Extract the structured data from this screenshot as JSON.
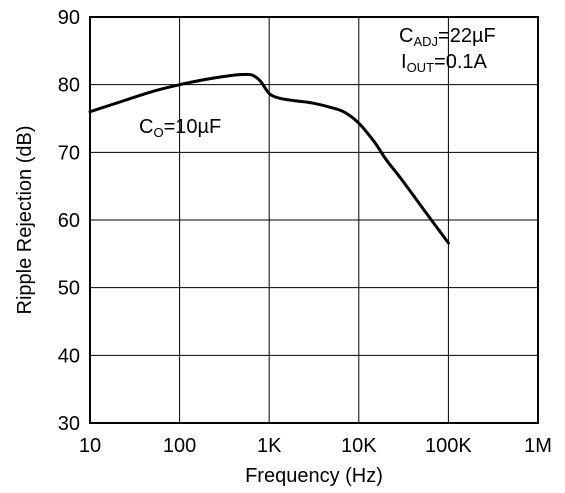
{
  "chart_data": {
    "type": "line",
    "xlabel": "Frequency (Hz)",
    "ylabel": "Ripple Rejection (dB)",
    "x_scale": "log",
    "xlim": [
      10,
      1000000
    ],
    "ylim": [
      30,
      90
    ],
    "grid": true,
    "x_ticks": [
      {
        "value": 10,
        "label": "10"
      },
      {
        "value": 100,
        "label": "100"
      },
      {
        "value": 1000,
        "label": "1K"
      },
      {
        "value": 10000,
        "label": "10K"
      },
      {
        "value": 100000,
        "label": "100K"
      },
      {
        "value": 1000000,
        "label": "1M"
      }
    ],
    "y_ticks": [
      {
        "value": 30,
        "label": "30"
      },
      {
        "value": 40,
        "label": "40"
      },
      {
        "value": 50,
        "label": "50"
      },
      {
        "value": 60,
        "label": "60"
      },
      {
        "value": 70,
        "label": "70"
      },
      {
        "value": 80,
        "label": "80"
      },
      {
        "value": 90,
        "label": "90"
      }
    ],
    "series": [
      {
        "x": [
          10,
          20,
          50,
          100,
          200,
          350,
          500,
          650,
          800,
          1000,
          1300,
          2000,
          3000,
          5000,
          7000,
          10000,
          15000,
          20000,
          30000,
          50000,
          100000
        ],
        "y": [
          76.0,
          77.3,
          79.0,
          80.0,
          80.8,
          81.3,
          81.5,
          81.4,
          80.5,
          78.7,
          78.0,
          77.6,
          77.3,
          76.6,
          75.9,
          74.3,
          71.5,
          69.0,
          66.0,
          62.0,
          56.6
        ]
      }
    ],
    "annotations": {
      "cadj": {
        "main": "C",
        "sub": "ADJ",
        "rest": "=22µF"
      },
      "iout": {
        "main": "I",
        "sub": "OUT",
        "rest": "=0.1A"
      },
      "co": {
        "main": "C",
        "sub": "O",
        "rest": "=10µF"
      }
    }
  }
}
